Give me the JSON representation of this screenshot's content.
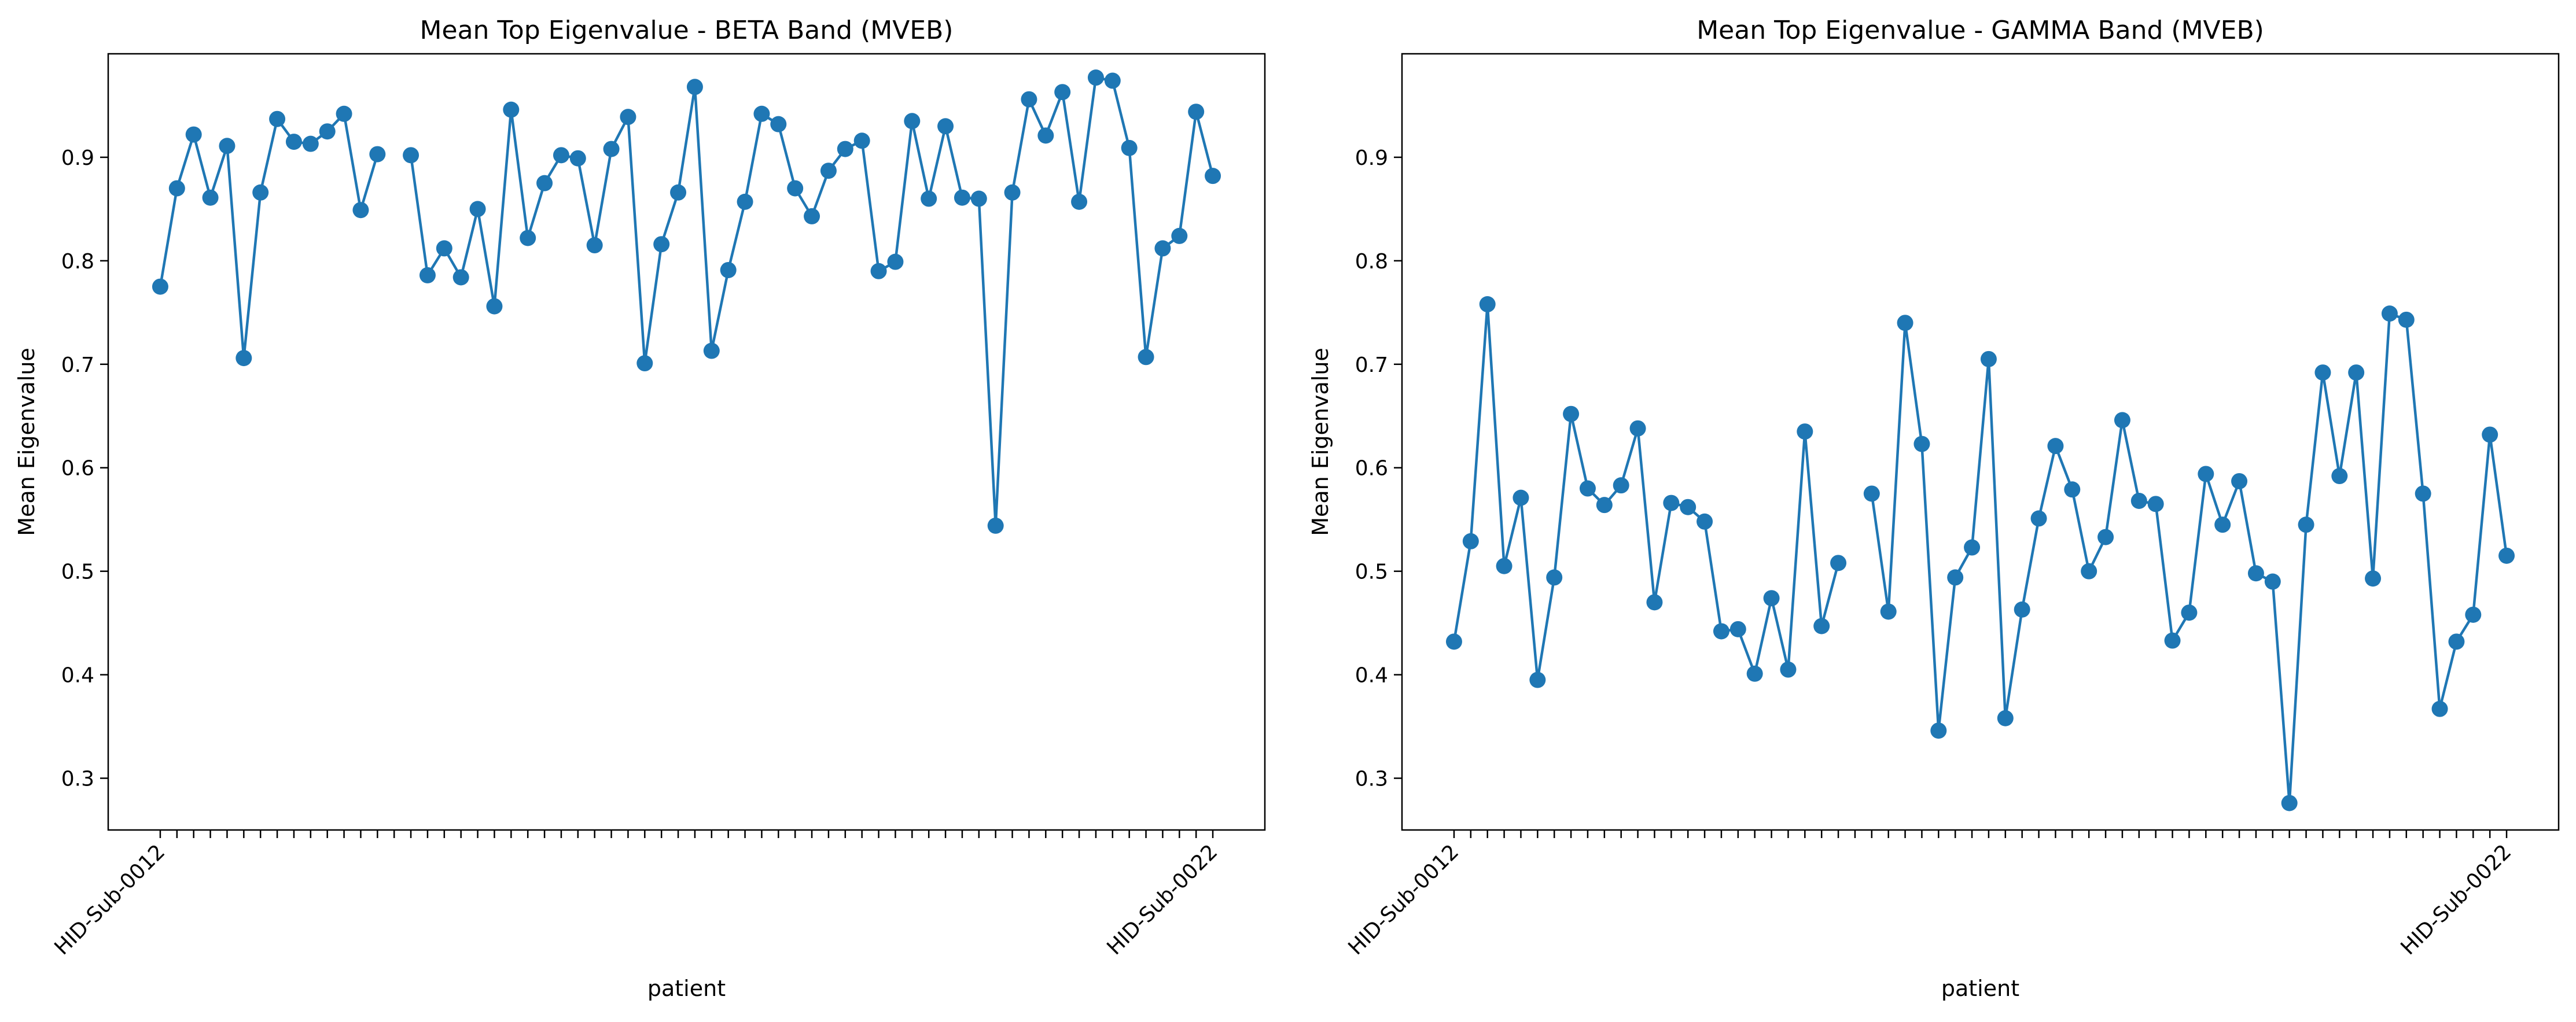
{
  "chart_data": [
    {
      "type": "line",
      "title": "Mean Top Eigenvalue - BETA Band (MVEB)",
      "xlabel": "patient",
      "ylabel": "Mean Eigenvalue",
      "ylim": [
        0.25,
        1.0
      ],
      "yticks": [
        0.3,
        0.4,
        0.5,
        0.6,
        0.7,
        0.8,
        0.9
      ],
      "grid": false,
      "legend": "none",
      "color": "#1f77b4",
      "x_count": 64,
      "x_tick_labels_visible": [
        "HID-Sub-0012",
        "",
        "",
        "",
        "",
        "",
        "",
        "",
        "",
        "",
        "",
        "",
        "",
        "",
        "",
        "",
        "",
        "",
        "",
        "",
        "",
        "",
        "",
        "",
        "",
        "",
        "",
        "",
        "",
        "",
        "",
        "",
        "",
        "",
        "",
        "",
        "",
        "",
        "",
        "",
        "",
        "",
        "",
        "",
        "",
        "",
        "",
        "",
        "",
        "",
        "",
        "",
        "",
        "",
        "",
        "",
        "",
        "",
        "",
        "",
        "",
        "",
        "",
        "HID-Sub-0022"
      ],
      "series": [
        {
          "values": [
            0.775,
            0.87,
            0.922,
            0.861,
            0.911,
            0.706,
            0.866,
            0.937,
            0.915,
            0.913,
            0.925,
            0.942,
            0.849,
            0.903,
            null,
            0.902,
            0.786,
            0.812,
            0.784,
            0.85,
            0.756,
            0.946,
            0.822,
            0.875,
            0.902,
            0.899,
            0.815,
            0.908,
            0.939,
            0.701,
            0.816,
            0.866,
            0.968,
            0.713,
            0.791,
            0.857,
            0.942,
            0.932,
            0.87,
            0.843,
            0.887,
            0.908,
            0.916,
            0.79,
            0.799,
            0.935,
            0.86,
            0.93,
            0.861,
            0.86,
            0.544,
            0.866,
            0.956,
            0.921,
            0.963,
            0.857,
            0.977,
            0.974,
            0.909,
            0.707,
            0.812,
            0.824,
            0.944,
            0.882
          ]
        }
      ]
    },
    {
      "type": "line",
      "title": "Mean Top Eigenvalue - GAMMA Band (MVEB)",
      "xlabel": "patient",
      "ylabel": "Mean Eigenvalue",
      "ylim": [
        0.25,
        1.0
      ],
      "yticks": [
        0.3,
        0.4,
        0.5,
        0.6,
        0.7,
        0.8,
        0.9
      ],
      "grid": false,
      "legend": "none",
      "color": "#1f77b4",
      "x_count": 64,
      "x_tick_labels_visible": [
        "HID-Sub-0012",
        "",
        "",
        "",
        "",
        "",
        "",
        "",
        "",
        "",
        "",
        "",
        "",
        "",
        "",
        "",
        "",
        "",
        "",
        "",
        "",
        "",
        "",
        "",
        "",
        "",
        "",
        "",
        "",
        "",
        "",
        "",
        "",
        "",
        "",
        "",
        "",
        "",
        "",
        "",
        "",
        "",
        "",
        "",
        "",
        "",
        "",
        "",
        "",
        "",
        "",
        "",
        "",
        "",
        "",
        "",
        "",
        "",
        "",
        "",
        "",
        "",
        "",
        "HID-Sub-0022"
      ],
      "series": [
        {
          "values": [
            0.432,
            0.529,
            0.758,
            0.505,
            0.571,
            0.395,
            0.494,
            0.652,
            0.58,
            0.564,
            0.583,
            0.638,
            0.47,
            0.566,
            0.562,
            0.548,
            0.442,
            0.444,
            0.401,
            0.474,
            0.405,
            0.635,
            0.447,
            0.508,
            null,
            0.575,
            0.461,
            0.74,
            0.623,
            0.346,
            0.494,
            0.523,
            0.705,
            0.358,
            0.463,
            0.551,
            0.621,
            0.579,
            0.5,
            0.533,
            0.646,
            0.568,
            0.565,
            0.433,
            0.46,
            0.594,
            0.545,
            0.587,
            0.498,
            0.49,
            0.276,
            0.545,
            0.692,
            0.592,
            0.692,
            0.493,
            0.749,
            0.743,
            0.575,
            0.367,
            0.432,
            0.458,
            0.632,
            0.515
          ]
        }
      ]
    }
  ]
}
